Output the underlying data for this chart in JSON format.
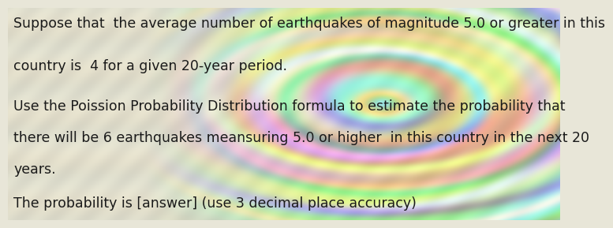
{
  "line1": "Suppose that  the average number of earthquakes of magnitude 5.0 or greater in this",
  "line2": "country is  4 for a given 20-year period.",
  "line3": "Use the Poission Probability Distribution formula to estimate the probability that",
  "line4": "there will be 6 earthquakes meansuring 5.0 or higher  in this country in the next 20",
  "line5": "years.",
  "line6": "The probability is [answer] (use 3 decimal place accuracy)",
  "font_size": 12.5,
  "text_color": "#1a1a1a"
}
